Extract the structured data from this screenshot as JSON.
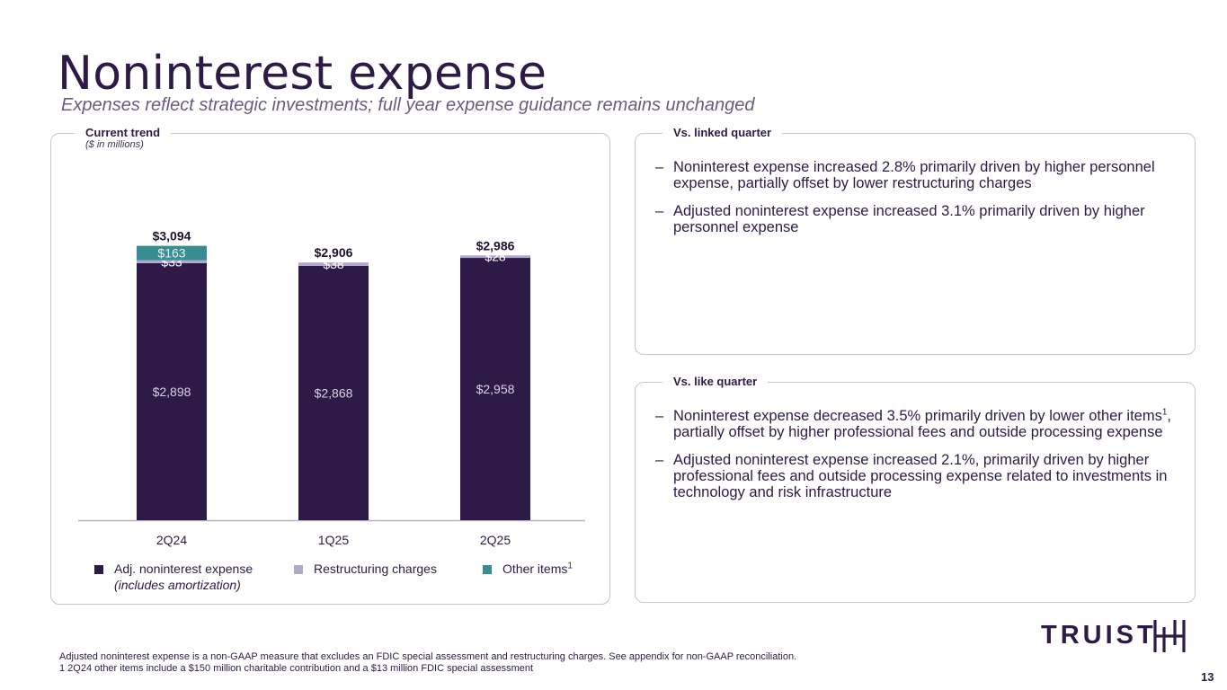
{
  "header": {
    "title": "Noninterest expense",
    "subtitle": "Expenses reflect strategic investments; full year expense guidance remains unchanged"
  },
  "trend_panel": {
    "label": "Current trend",
    "sublabel": "($ in millions)"
  },
  "chart_data": {
    "type": "bar",
    "stacked": true,
    "categories": [
      "2Q24",
      "1Q25",
      "2Q25"
    ],
    "series": [
      {
        "name": "Adj. noninterest expense (includes amortization)",
        "values": [
          2898,
          2868,
          2958
        ],
        "labels": [
          "$2,898",
          "$2,868",
          "$2,958"
        ],
        "color": "#2e1a47"
      },
      {
        "name": "Restructuring charges",
        "values": [
          33,
          38,
          28
        ],
        "labels": [
          "$33",
          "$38",
          "$28"
        ],
        "color": "#b1a9cb"
      },
      {
        "name": "Other items",
        "values": [
          163,
          0,
          0
        ],
        "labels": [
          "$163",
          "",
          ""
        ],
        "color": "#378d91"
      }
    ],
    "totals": [
      3094,
      2906,
      2986
    ],
    "total_labels": [
      "$3,094",
      "$2,906",
      "$2,986"
    ],
    "ylim": [
      0,
      3200
    ],
    "axis_note": "$ in millions",
    "title": "Current trend"
  },
  "legend": {
    "adj_label": "Adj. noninterest expense",
    "adj_sublabel": "(includes amortization)",
    "restructuring_label": "Restructuring charges",
    "other_label": "Other items",
    "other_sup": "1"
  },
  "linked_quarter": {
    "label": "Vs. linked quarter",
    "bullets": [
      "Noninterest expense increased 2.8% primarily driven by higher personnel expense, partially offset by lower restructuring charges",
      "Adjusted noninterest expense increased 3.1% primarily driven by higher personnel expense"
    ]
  },
  "like_quarter": {
    "label": "Vs. like quarter",
    "bullet1_pre": "Noninterest expense decreased 3.5% primarily driven by lower other items",
    "bullet1_sup": "1",
    "bullet1_post": ", partially offset by higher professional fees and outside processing expense",
    "bullet2": "Adjusted noninterest expense increased 2.1%, primarily driven by higher professional fees and outside processing expense related to investments in technology and risk infrastructure"
  },
  "dash": "–",
  "footnotes": {
    "line1": "Adjusted noninterest expense is a non-GAAP measure that excludes an FDIC special assessment and restructuring charges. See appendix for non-GAAP reconciliation.",
    "line2": "1 2Q24 other items include a $150 million charitable contribution and a $13 million FDIC special assessment"
  },
  "brand": {
    "logo_text": "TRUIST",
    "logo_icon": "truist-h-mark-icon"
  },
  "page_number": "13",
  "colors": {
    "primary": "#2e1a47",
    "lavender": "#b1a9cb",
    "teal": "#378d91"
  }
}
